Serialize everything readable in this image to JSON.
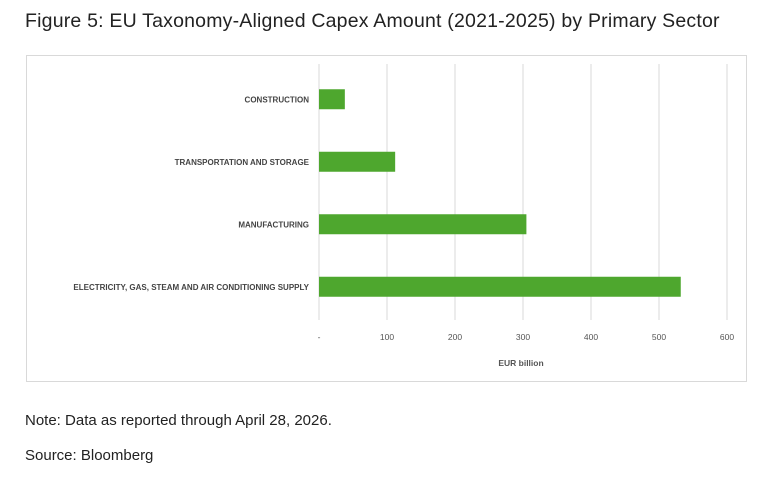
{
  "figure": {
    "title": "Figure 5: EU Taxonomy-Aligned Capex Amount (2021-2025) by Primary Sector",
    "note": "Note: Data as reported through April 28, 2026.",
    "source": "Source: Bloomberg"
  },
  "colors": {
    "bar": "#4ea72e",
    "grid": "#d9d9d9"
  },
  "chart_data": {
    "type": "bar",
    "orientation": "horizontal",
    "categories": [
      "CONSTRUCTION",
      "TRANSPORTATION AND STORAGE",
      "MANUFACTURING",
      "ELECTRICITY, GAS, STEAM AND AIR CONDITIONING SUPPLY"
    ],
    "values": [
      38,
      112,
      305,
      532
    ],
    "xlabel": "EUR billion",
    "ylabel": "",
    "xlim": [
      0,
      600
    ],
    "xticks": [
      0,
      100,
      200,
      300,
      400,
      500,
      600
    ],
    "xtick_labels": [
      "-",
      "100",
      "200",
      "300",
      "400",
      "500",
      "600"
    ],
    "grid": "vertical",
    "legend": "none"
  }
}
